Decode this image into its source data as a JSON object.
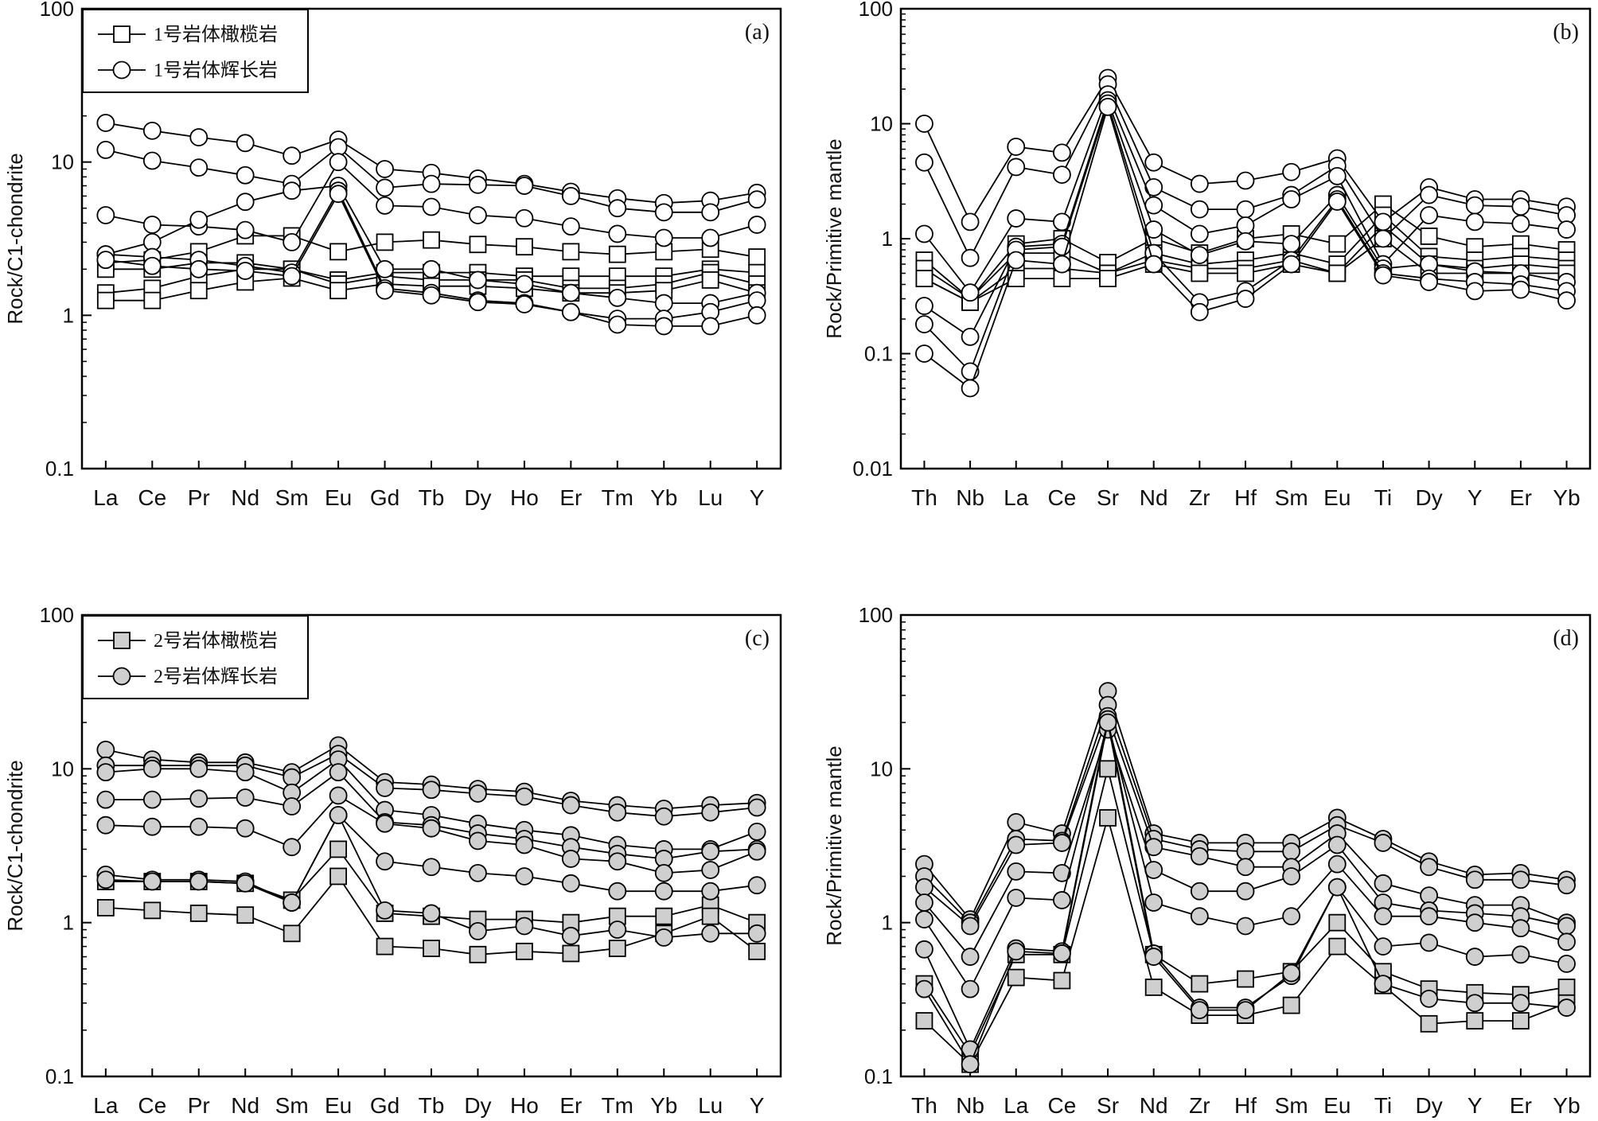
{
  "chart_data": [
    {
      "type": "line",
      "panel": "(a)",
      "ylabel": "Rock/C1-chondrite",
      "yscale": "log",
      "ylim": [
        0.1,
        100
      ],
      "yticks": [
        "0.1",
        "1",
        "10",
        "100"
      ],
      "categories": [
        "La",
        "Ce",
        "Pr",
        "Nd",
        "Sm",
        "Eu",
        "Gd",
        "Tb",
        "Dy",
        "Ho",
        "Er",
        "Tm",
        "Yb",
        "Lu",
        "Y"
      ],
      "legend": [
        {
          "label": "1号岩体橄榄岩",
          "marker": "square",
          "fill": "#ffffff"
        },
        {
          "label": "1号岩体辉长岩",
          "marker": "circle",
          "fill": "#ffffff"
        }
      ],
      "series": [
        {
          "group": 0,
          "values": [
            2.2,
            2.3,
            2.6,
            3.3,
            3.3,
            2.6,
            3.0,
            3.1,
            2.9,
            2.8,
            2.6,
            2.5,
            2.6,
            2.7,
            2.4
          ]
        },
        {
          "group": 0,
          "values": [
            2.0,
            2.0,
            2.2,
            2.2,
            2.0,
            1.7,
            1.9,
            1.9,
            1.9,
            1.8,
            1.8,
            1.8,
            1.8,
            2.0,
            1.9
          ]
        },
        {
          "group": 0,
          "values": [
            1.4,
            1.5,
            1.8,
            2.0,
            2.0,
            1.6,
            1.8,
            1.7,
            1.7,
            1.7,
            1.5,
            1.5,
            1.6,
            1.9,
            1.6
          ]
        },
        {
          "group": 0,
          "values": [
            1.25,
            1.25,
            1.45,
            1.65,
            1.75,
            1.45,
            1.6,
            1.55,
            1.55,
            1.5,
            1.4,
            1.4,
            1.45,
            1.7,
            1.4
          ]
        },
        {
          "group": 1,
          "values": [
            18,
            16,
            14.5,
            13.3,
            11,
            14,
            9,
            8.5,
            7.8,
            7.2,
            6.4,
            5.8,
            5.4,
            5.6,
            6.3
          ]
        },
        {
          "group": 1,
          "values": [
            12,
            10.2,
            9.2,
            8.2,
            7.2,
            12.5,
            6.8,
            7.2,
            7.1,
            7.0,
            6.0,
            5.0,
            4.7,
            4.7,
            5.7
          ]
        },
        {
          "group": 1,
          "values": [
            4.5,
            3.9,
            3.8,
            3.6,
            3.0,
            10,
            5.2,
            5.1,
            4.5,
            4.3,
            3.8,
            3.4,
            3.2,
            3.2,
            3.9
          ]
        },
        {
          "group": 1,
          "values": [
            2.5,
            3.0,
            4.2,
            5.5,
            6.5,
            7.0,
            2.0,
            2.0,
            1.7,
            1.6,
            1.4,
            1.3,
            1.2,
            1.2,
            1.4
          ]
        },
        {
          "group": 1,
          "values": [
            2.5,
            2.4,
            2.3,
            2.1,
            1.9,
            6.5,
            1.5,
            1.4,
            1.25,
            1.2,
            1.05,
            0.95,
            0.95,
            1.05,
            1.25
          ]
        },
        {
          "group": 1,
          "values": [
            2.3,
            2.1,
            2.0,
            1.95,
            1.8,
            6.2,
            1.45,
            1.35,
            1.22,
            1.18,
            1.05,
            0.87,
            0.85,
            0.85,
            1.0
          ]
        }
      ]
    },
    {
      "type": "line",
      "panel": "(b)",
      "ylabel": "Rock/Primitive mantle",
      "yscale": "log",
      "ylim": [
        0.01,
        100
      ],
      "yticks": [
        "0.01",
        "0.1",
        "1",
        "10",
        "100"
      ],
      "categories": [
        "Th",
        "Nb",
        "La",
        "Ce",
        "Sr",
        "Nd",
        "Zr",
        "Hf",
        "Sm",
        "Eu",
        "Ti",
        "Dy",
        "Y",
        "Er",
        "Yb"
      ],
      "series": [
        {
          "group": 0,
          "values": [
            0.65,
            0.3,
            0.9,
            1.0,
            0.62,
            1.0,
            0.75,
            1.0,
            1.1,
            0.9,
            2.0,
            1.05,
            0.85,
            0.9,
            0.8
          ]
        },
        {
          "group": 0,
          "values": [
            0.55,
            0.3,
            0.75,
            0.75,
            0.5,
            0.75,
            0.6,
            0.65,
            0.75,
            0.6,
            1.6,
            0.7,
            0.65,
            0.7,
            0.65
          ]
        },
        {
          "group": 0,
          "values": [
            0.45,
            0.28,
            0.55,
            0.55,
            0.5,
            0.65,
            0.55,
            0.55,
            0.65,
            0.5,
            1.3,
            0.6,
            0.55,
            0.6,
            0.55
          ]
        },
        {
          "group": 0,
          "values": [
            0.45,
            0.28,
            0.45,
            0.45,
            0.45,
            0.6,
            0.5,
            0.5,
            0.6,
            0.5,
            1.0,
            0.5,
            0.5,
            0.5,
            0.5
          ]
        },
        {
          "group": 1,
          "values": [
            10,
            1.4,
            6.3,
            5.6,
            25,
            4.6,
            3.0,
            3.2,
            3.8,
            5.0,
            1.4,
            2.8,
            2.2,
            2.2,
            1.9
          ]
        },
        {
          "group": 1,
          "values": [
            4.6,
            0.68,
            4.2,
            3.6,
            22,
            2.8,
            1.8,
            1.8,
            2.4,
            4.3,
            1.0,
            2.4,
            1.95,
            1.9,
            1.6
          ]
        },
        {
          "group": 1,
          "values": [
            1.1,
            0.34,
            1.5,
            1.4,
            18,
            1.95,
            1.1,
            1.3,
            2.2,
            3.5,
            0.6,
            1.6,
            1.4,
            1.35,
            1.2
          ]
        },
        {
          "group": 1,
          "values": [
            0.26,
            0.14,
            0.85,
            0.9,
            16,
            1.2,
            0.72,
            0.95,
            0.9,
            2.4,
            0.55,
            0.6,
            0.52,
            0.5,
            0.42
          ]
        },
        {
          "group": 1,
          "values": [
            0.18,
            0.07,
            0.8,
            0.85,
            15,
            0.75,
            0.28,
            0.35,
            0.65,
            2.2,
            0.5,
            0.45,
            0.42,
            0.4,
            0.35
          ]
        },
        {
          "group": 1,
          "values": [
            0.1,
            0.05,
            0.65,
            0.6,
            14,
            0.6,
            0.23,
            0.3,
            0.6,
            2.1,
            0.48,
            0.42,
            0.35,
            0.36,
            0.29
          ]
        }
      ]
    },
    {
      "type": "line",
      "panel": "(c)",
      "ylabel": "Rock/C1-chondrite",
      "yscale": "log",
      "ylim": [
        0.1,
        100
      ],
      "yticks": [
        "0.1",
        "1",
        "10",
        "100"
      ],
      "categories": [
        "La",
        "Ce",
        "Pr",
        "Nd",
        "Sm",
        "Eu",
        "Gd",
        "Tb",
        "Dy",
        "Ho",
        "Er",
        "Tm",
        "Yb",
        "Lu",
        "Y"
      ],
      "legend": [
        {
          "label": "2号岩体橄榄岩",
          "marker": "square",
          "fill": "#cfcfcf"
        },
        {
          "label": "2号岩体辉长岩",
          "marker": "circle",
          "fill": "#cfcfcf"
        }
      ],
      "series": [
        {
          "group": 0,
          "values": [
            1.85,
            1.85,
            1.85,
            1.8,
            1.4,
            3.0,
            1.15,
            1.1,
            1.05,
            1.05,
            1.0,
            1.1,
            1.1,
            1.3,
            1.0
          ]
        },
        {
          "group": 0,
          "values": [
            1.25,
            1.2,
            1.15,
            1.12,
            0.85,
            2.0,
            0.7,
            0.68,
            0.62,
            0.65,
            0.63,
            0.68,
            0.85,
            1.1,
            0.65
          ]
        },
        {
          "group": 1,
          "values": [
            13.3,
            11.5,
            11,
            11,
            9.5,
            14.2,
            8.2,
            7.9,
            7.4,
            7.1,
            6.2,
            5.8,
            5.5,
            5.8,
            6.0
          ]
        },
        {
          "group": 1,
          "values": [
            10.5,
            10.5,
            10.5,
            10.5,
            8.8,
            12.5,
            7.5,
            7.3,
            6.9,
            6.6,
            5.8,
            5.2,
            4.9,
            5.2,
            5.6
          ]
        },
        {
          "group": 1,
          "values": [
            9.5,
            10,
            10,
            9.5,
            7,
            11.5,
            5.4,
            5.0,
            4.4,
            4.0,
            3.7,
            3.2,
            3.0,
            3.0,
            3.9
          ]
        },
        {
          "group": 1,
          "values": [
            6.3,
            6.3,
            6.4,
            6.5,
            5.7,
            9.5,
            4.5,
            4.3,
            3.8,
            3.5,
            3.1,
            2.8,
            2.6,
            2.9,
            3.0
          ]
        },
        {
          "group": 1,
          "values": [
            4.3,
            4.2,
            4.2,
            4.1,
            3.1,
            6.7,
            4.4,
            4.1,
            3.4,
            3.2,
            2.6,
            2.5,
            2.1,
            2.2,
            2.9
          ]
        },
        {
          "group": 1,
          "values": [
            2.05,
            1.9,
            1.9,
            1.85,
            1.35,
            5.0,
            2.5,
            2.3,
            2.1,
            2.0,
            1.8,
            1.6,
            1.6,
            1.6,
            1.75
          ]
        },
        {
          "group": 1,
          "values": [
            1.9,
            1.85,
            1.85,
            1.8,
            1.35,
            5.0,
            1.2,
            1.15,
            0.88,
            0.95,
            0.82,
            0.9,
            0.8,
            0.85,
            0.85
          ]
        }
      ]
    },
    {
      "type": "line",
      "panel": "(d)",
      "ylabel": "Rock/Primitive mantle",
      "yscale": "log",
      "ylim": [
        0.1,
        100
      ],
      "yticks": [
        "0.1",
        "1",
        "10",
        "100"
      ],
      "categories": [
        "Th",
        "Nb",
        "La",
        "Ce",
        "Sr",
        "Nd",
        "Zr",
        "Hf",
        "Sm",
        "Eu",
        "Ti",
        "Dy",
        "Y",
        "Er",
        "Yb"
      ],
      "series": [
        {
          "group": 0,
          "values": [
            0.4,
            0.14,
            0.62,
            0.62,
            10,
            0.62,
            0.4,
            0.43,
            0.48,
            1.0,
            0.48,
            0.37,
            0.35,
            0.34,
            0.38
          ]
        },
        {
          "group": 0,
          "values": [
            0.23,
            0.12,
            0.44,
            0.42,
            4.8,
            0.38,
            0.25,
            0.25,
            0.29,
            0.7,
            0.39,
            0.22,
            0.23,
            0.23,
            0.3
          ]
        },
        {
          "group": 1,
          "values": [
            2.4,
            1.05,
            4.5,
            3.8,
            32,
            3.8,
            3.3,
            3.3,
            3.3,
            4.8,
            3.5,
            2.5,
            2.05,
            2.1,
            1.9
          ]
        },
        {
          "group": 1,
          "values": [
            2.0,
            1.0,
            3.5,
            3.4,
            26,
            3.5,
            3.0,
            2.9,
            2.9,
            4.3,
            3.3,
            2.3,
            1.9,
            1.9,
            1.75
          ]
        },
        {
          "group": 1,
          "values": [
            1.7,
            0.95,
            3.2,
            3.3,
            22,
            3.1,
            2.7,
            2.3,
            2.3,
            3.8,
            1.8,
            1.5,
            1.3,
            1.3,
            1.0
          ]
        },
        {
          "group": 1,
          "values": [
            1.35,
            0.6,
            2.15,
            2.1,
            18,
            2.2,
            1.6,
            1.6,
            2.0,
            3.2,
            1.35,
            1.2,
            1.15,
            1.1,
            0.95
          ]
        },
        {
          "group": 1,
          "values": [
            1.05,
            0.37,
            1.45,
            1.4,
            20,
            1.35,
            1.1,
            0.95,
            1.1,
            2.4,
            1.1,
            1.1,
            1.0,
            0.92,
            0.75
          ]
        },
        {
          "group": 1,
          "values": [
            0.67,
            0.15,
            0.68,
            0.65,
            21,
            0.63,
            0.28,
            0.28,
            0.45,
            1.7,
            0.7,
            0.74,
            0.6,
            0.62,
            0.54
          ]
        },
        {
          "group": 1,
          "values": [
            0.37,
            0.12,
            0.65,
            0.63,
            20,
            0.6,
            0.27,
            0.27,
            0.47,
            1.7,
            0.4,
            0.32,
            0.3,
            0.3,
            0.28
          ]
        }
      ]
    }
  ]
}
